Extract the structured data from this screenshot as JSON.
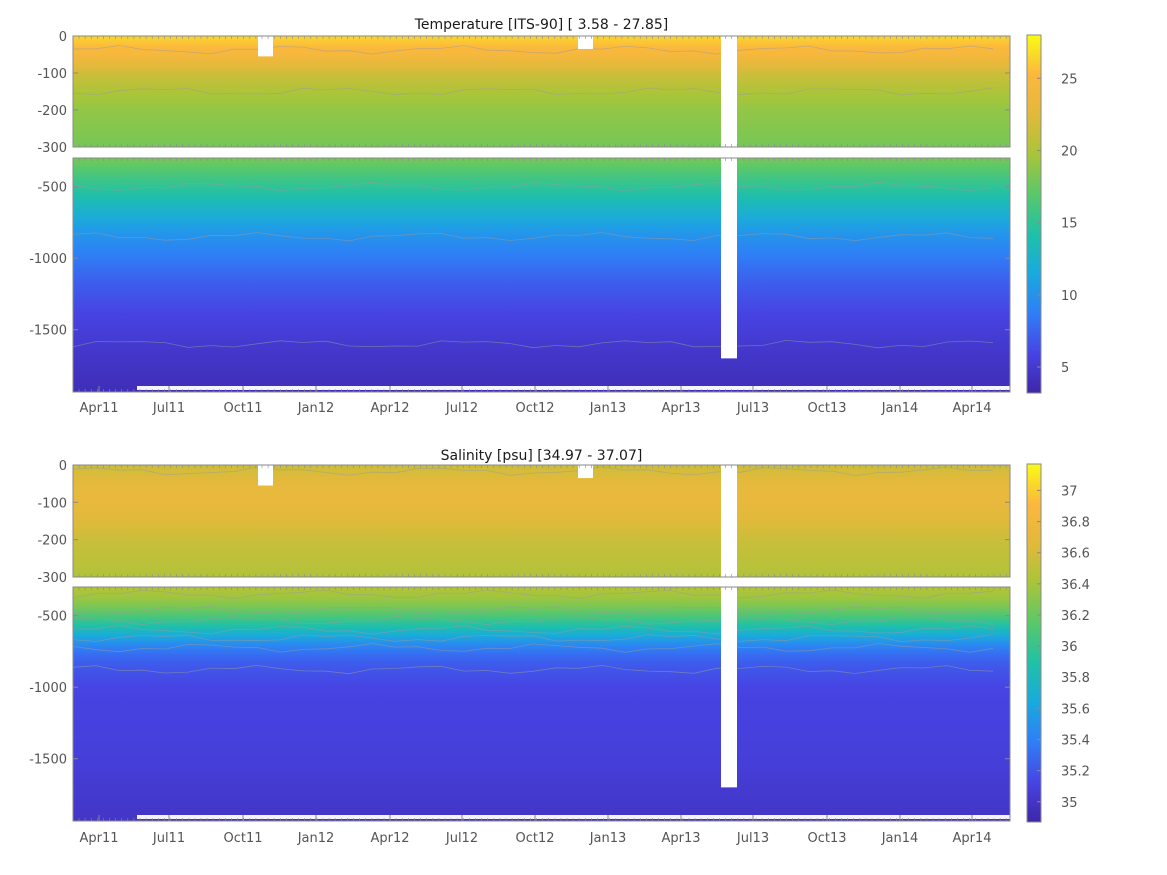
{
  "chart_data": [
    {
      "type": "heatmap",
      "title": "Temperature [ITS-90]   [ 3.58 - 27.85]",
      "variable": "temperature",
      "value_range": [
        3.58,
        27.85
      ],
      "colorbar_ticks": [
        5,
        10,
        15,
        20,
        25
      ],
      "colorbar_range": [
        3.2,
        28.0
      ],
      "upper_panel": {
        "ylim": [
          -300,
          0
        ],
        "yticks": [
          0,
          -100,
          -200,
          -300
        ]
      },
      "lower_panel": {
        "ylim": [
          -1935,
          -300
        ],
        "yticks": [
          -500,
          -1000,
          -1500
        ]
      },
      "xticks": [
        "Apr11",
        "Jul11",
        "Oct11",
        "Jan12",
        "Apr12",
        "Jul12",
        "Oct12",
        "Jan13",
        "Apr13",
        "Jul13",
        "Oct13",
        "Jan14",
        "Apr14"
      ],
      "data_gaps": [
        {
          "start": "Oct11",
          "end": "Oct11",
          "depth": [
            -55,
            0
          ]
        },
        {
          "start": "Nov12",
          "end": "Nov12",
          "depth": [
            -35,
            0
          ]
        },
        {
          "start": "Jun13",
          "end": "Jun13",
          "depth": [
            -1700,
            0
          ]
        }
      ],
      "depth_profile": [
        {
          "depth": 0,
          "value": 26.5
        },
        {
          "depth": -50,
          "value": 24.5
        },
        {
          "depth": -100,
          "value": 21.5
        },
        {
          "depth": -150,
          "value": 20.0
        },
        {
          "depth": -200,
          "value": 19.0
        },
        {
          "depth": -300,
          "value": 18.0
        },
        {
          "depth": -400,
          "value": 16.5
        },
        {
          "depth": -500,
          "value": 15.0
        },
        {
          "depth": -600,
          "value": 13.5
        },
        {
          "depth": -700,
          "value": 12.0
        },
        {
          "depth": -800,
          "value": 10.5
        },
        {
          "depth": -900,
          "value": 9.5
        },
        {
          "depth": -1000,
          "value": 8.5
        },
        {
          "depth": -1200,
          "value": 7.0
        },
        {
          "depth": -1400,
          "value": 5.8
        },
        {
          "depth": -1600,
          "value": 5.0
        },
        {
          "depth": -1800,
          "value": 4.3
        },
        {
          "depth": -1935,
          "value": 3.9
        }
      ]
    },
    {
      "type": "heatmap",
      "title": "Salinity [psu]   [34.97 - 37.07]",
      "variable": "salinity",
      "value_range": [
        34.97,
        37.07
      ],
      "colorbar_ticks": [
        35,
        35.2,
        35.4,
        35.6,
        35.8,
        36,
        36.2,
        36.4,
        36.6,
        36.8,
        37
      ],
      "colorbar_range": [
        34.87,
        37.17
      ],
      "upper_panel": {
        "ylim": [
          -300,
          0
        ],
        "yticks": [
          0,
          -100,
          -200,
          -300
        ]
      },
      "lower_panel": {
        "ylim": [
          -1935,
          -300
        ],
        "yticks": [
          -500,
          -1000,
          -1500
        ]
      },
      "xticks": [
        "Apr11",
        "Jul11",
        "Oct11",
        "Jan12",
        "Apr12",
        "Jul12",
        "Oct12",
        "Jan13",
        "Apr13",
        "Jul13",
        "Oct13",
        "Jan14",
        "Apr14"
      ],
      "data_gaps": [
        {
          "start": "Oct11",
          "end": "Oct11",
          "depth": [
            -55,
            0
          ]
        },
        {
          "start": "Nov12",
          "end": "Nov12",
          "depth": [
            -35,
            0
          ]
        },
        {
          "start": "Jun13",
          "end": "Jun13",
          "depth": [
            -1700,
            0
          ]
        }
      ],
      "depth_profile": [
        {
          "depth": 0,
          "value": 36.55
        },
        {
          "depth": -50,
          "value": 36.7
        },
        {
          "depth": -100,
          "value": 36.72
        },
        {
          "depth": -150,
          "value": 36.65
        },
        {
          "depth": -200,
          "value": 36.55
        },
        {
          "depth": -300,
          "value": 36.45
        },
        {
          "depth": -400,
          "value": 36.35
        },
        {
          "depth": -500,
          "value": 36.1
        },
        {
          "depth": -600,
          "value": 35.8
        },
        {
          "depth": -700,
          "value": 35.45
        },
        {
          "depth": -800,
          "value": 35.25
        },
        {
          "depth": -1000,
          "value": 35.12
        },
        {
          "depth": -1500,
          "value": 35.08
        },
        {
          "depth": -1935,
          "value": 35.0
        }
      ]
    }
  ],
  "colors": {
    "colormap": [
      "#3e26a8",
      "#4744e4",
      "#2f7ef7",
      "#1aa9de",
      "#1fc1a8",
      "#59c86a",
      "#a8c539",
      "#e2b93b",
      "#fcb73e",
      "#f9fb15"
    ],
    "gap": "#ffffff",
    "axis": "#8a8a8a",
    "contour": "#9a9a9a"
  }
}
